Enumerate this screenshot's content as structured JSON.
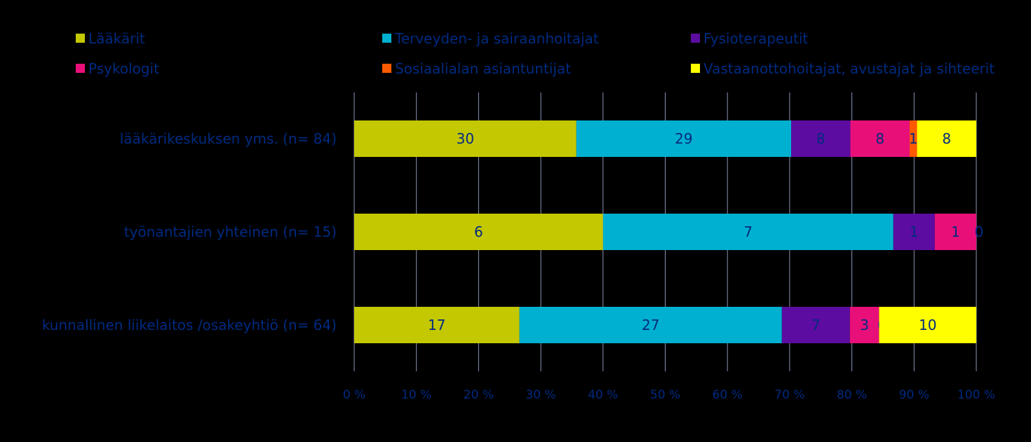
{
  "chart_data": {
    "type": "bar",
    "orientation": "horizontal",
    "stacked": "percent",
    "categories": [
      "lääkärikeskuksen yms. (n= 84)",
      "työnantajien yhteinen (n= 15)",
      "kunnallinen liikelaitos /osakeyhtiö (n= 64)"
    ],
    "series": [
      {
        "name": "Lääkärit",
        "color": "#c4c800",
        "values": [
          30,
          6,
          17
        ]
      },
      {
        "name": "Terveyden- ja sairaanhoitajat",
        "color": "#00b0d0",
        "values": [
          29,
          7,
          27
        ]
      },
      {
        "name": "Fysioterapeutit",
        "color": "#5c0ca0",
        "values": [
          8,
          1,
          7
        ]
      },
      {
        "name": "Psykologit",
        "color": "#e81078",
        "values": [
          8,
          1,
          3
        ]
      },
      {
        "name": "Sosiaalialan asiantuntijat",
        "color": "#ff5a00",
        "values": [
          1,
          0,
          0
        ]
      },
      {
        "name": "Vastaanottohoitajat, avustajat ja sihteerit",
        "color": "#ffff00",
        "values": [
          8,
          0,
          10
        ]
      }
    ],
    "x_ticks": [
      "0 %",
      "10 %",
      "20 %",
      "30 %",
      "40 %",
      "50 %",
      "60 %",
      "70 %",
      "80 %",
      "90 %",
      "100 %"
    ],
    "xlim": [
      0,
      100
    ],
    "grid": "vertical",
    "legend_position": "top",
    "text_color": "#002a80",
    "grid_color": "#8a94b4"
  }
}
